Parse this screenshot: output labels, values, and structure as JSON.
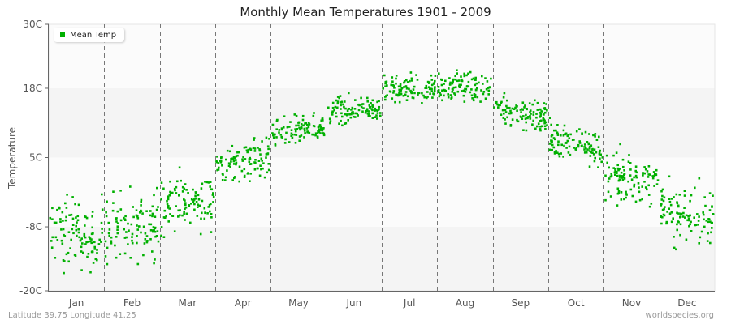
{
  "chart_data": {
    "type": "scatter",
    "title": "Monthly Mean Temperatures 1901 - 2009",
    "xlabel": "",
    "ylabel": "Temperature",
    "ylim": [
      -20,
      30
    ],
    "yticks": [
      "30C",
      "18C",
      "5C",
      "-8C",
      "-20C"
    ],
    "ytick_values": [
      30,
      18,
      5,
      -8,
      -20
    ],
    "categories": [
      "Jan",
      "Feb",
      "Mar",
      "Apr",
      "May",
      "Jun",
      "Jul",
      "Aug",
      "Sep",
      "Oct",
      "Nov",
      "Dec"
    ],
    "years": [
      1901,
      2009
    ],
    "points_per_month": 109,
    "series": [
      {
        "name": "Mean Temp",
        "color": "#00b000",
        "monthly_mean": [
          -9.5,
          -8.0,
          -3.5,
          4.5,
          10.0,
          14.0,
          18.0,
          18.5,
          13.5,
          7.5,
          1.0,
          -6.0
        ],
        "monthly_spread": [
          4.0,
          4.0,
          3.2,
          2.4,
          1.6,
          1.6,
          1.5,
          1.6,
          2.0,
          2.2,
          2.6,
          3.3
        ]
      }
    ],
    "legend_position": "top-left",
    "grid": "alternating horizontal bands with dashed vertical month separators"
  },
  "footer": {
    "location": "Latitude 39.75 Longitude 41.25",
    "source": "worldspecies.org"
  }
}
